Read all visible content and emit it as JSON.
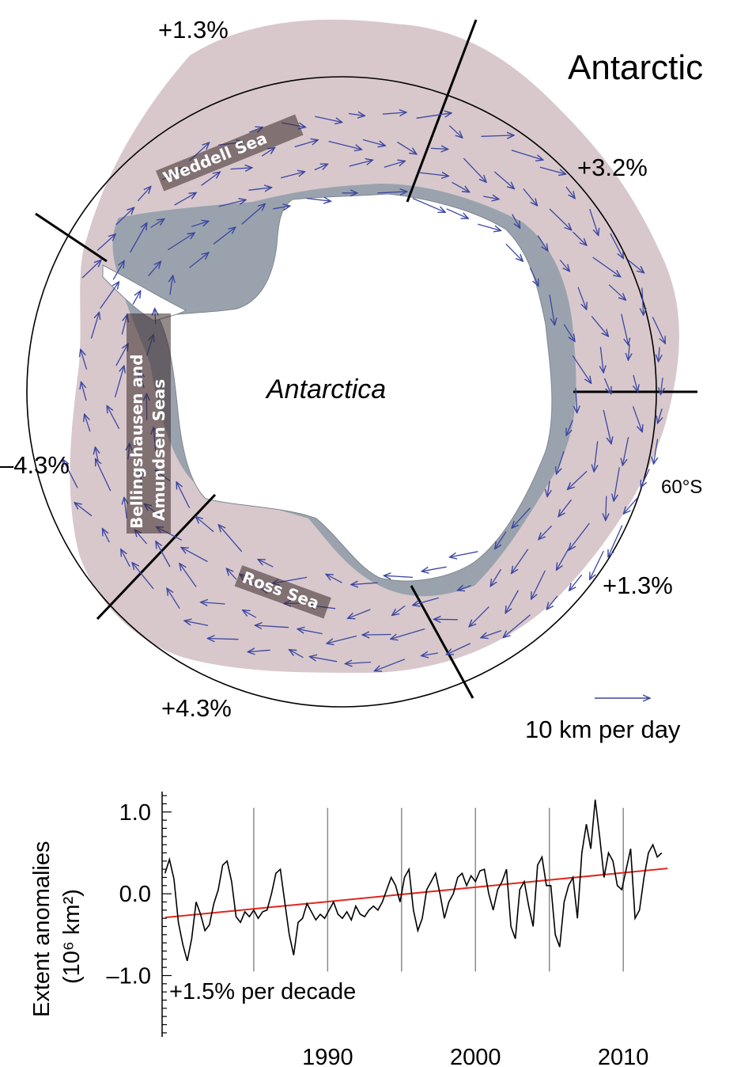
{
  "map": {
    "title": "Antarctic",
    "continent_label": "Antarctica",
    "latitude_label": "60°S",
    "seas": {
      "weddell": "Weddell Sea",
      "bellingshausen_line1": "Bellingshausen and",
      "bellingshausen_line2": "Amundsen Seas",
      "ross": "Ross Sea"
    },
    "sector_trends": {
      "weddell": "+1.3%",
      "indian": "+3.2%",
      "pacific_west": "+1.3%",
      "ross": "+4.3%",
      "bellingshausen": "–4.3%"
    },
    "scale_label": "10 km per day",
    "colors": {
      "sea_ice": "#d8c8cc",
      "ice_shelf": "#9aa3ad",
      "vector": "#3d47a0",
      "continent": "#ffffff"
    }
  },
  "chart_data": {
    "type": "line",
    "title": "",
    "xlabel": "",
    "ylabel": "Extent anomalies",
    "ylabel_units": "(10⁶ km²)",
    "xlim": [
      1978.8,
      2013.2
    ],
    "ylim": [
      -1.75,
      1.25
    ],
    "x_ticks": [
      "1990",
      "2000",
      "2010"
    ],
    "y_ticks": [
      "1.0",
      "0.0",
      "–1.0"
    ],
    "trend_label": "+1.5% per decade",
    "trend_color": "#e0281e",
    "trend": {
      "x": [
        1979,
        2013
      ],
      "y": [
        -0.29,
        0.31
      ]
    },
    "vertical_markers": [
      1985,
      1990,
      1995,
      2000,
      2005,
      2010
    ],
    "series": [
      {
        "x": [
          1979.0,
          1979.3,
          1979.6,
          1979.9,
          1980.2,
          1980.5,
          1980.8,
          1981.1,
          1981.4,
          1981.7,
          1982.0,
          1982.3,
          1982.6,
          1982.9,
          1983.2,
          1983.5,
          1983.8,
          1984.1,
          1984.4,
          1984.7,
          1985.0,
          1985.3,
          1985.6,
          1985.9,
          1986.2,
          1986.5,
          1986.8,
          1987.1,
          1987.4,
          1987.7,
          1988.0,
          1988.3,
          1988.6,
          1988.9,
          1989.2,
          1989.5,
          1989.8,
          1990.1,
          1990.4,
          1990.7,
          1991.0,
          1991.3,
          1991.6,
          1991.9,
          1992.2,
          1992.5,
          1992.8,
          1993.1,
          1993.4,
          1993.7,
          1994.0,
          1994.3,
          1994.6,
          1994.9,
          1995.2,
          1995.5,
          1995.8,
          1996.1,
          1996.4,
          1996.7,
          1997.0,
          1997.3,
          1997.6,
          1997.9,
          1998.2,
          1998.5,
          1998.8,
          1999.1,
          1999.4,
          1999.7,
          2000.0,
          2000.3,
          2000.6,
          2000.9,
          2001.2,
          2001.5,
          2001.8,
          2002.1,
          2002.4,
          2002.7,
          2003.0,
          2003.3,
          2003.6,
          2003.9,
          2004.2,
          2004.5,
          2004.8,
          2005.1,
          2005.4,
          2005.7,
          2006.0,
          2006.3,
          2006.6,
          2006.9,
          2007.2,
          2007.5,
          2007.8,
          2008.1,
          2008.4,
          2008.7,
          2009.0,
          2009.3,
          2009.6,
          2009.9,
          2010.2,
          2010.5,
          2010.8,
          2011.1,
          2011.4,
          2011.7,
          2012.0,
          2012.3,
          2012.6
        ],
        "values": [
          0.25,
          0.42,
          0.18,
          -0.35,
          -0.62,
          -0.82,
          -0.55,
          -0.1,
          -0.25,
          -0.45,
          -0.38,
          -0.12,
          0.05,
          0.35,
          0.4,
          0.15,
          -0.28,
          -0.35,
          -0.22,
          -0.28,
          -0.2,
          -0.3,
          -0.22,
          -0.2,
          0.0,
          0.25,
          0.3,
          -0.1,
          -0.5,
          -0.75,
          -0.35,
          -0.3,
          -0.12,
          -0.22,
          -0.32,
          -0.25,
          -0.3,
          -0.2,
          -0.1,
          -0.25,
          -0.3,
          -0.22,
          -0.32,
          -0.15,
          -0.25,
          -0.28,
          -0.2,
          -0.15,
          -0.2,
          -0.1,
          0.05,
          0.2,
          0.1,
          -0.1,
          0.2,
          0.3,
          -0.2,
          -0.45,
          -0.3,
          0.05,
          0.15,
          0.25,
          0.0,
          -0.3,
          -0.1,
          0.0,
          0.2,
          0.25,
          0.1,
          0.22,
          0.15,
          0.28,
          0.3,
          0.0,
          -0.2,
          0.05,
          0.15,
          0.3,
          -0.4,
          -0.55,
          0.05,
          0.15,
          -0.15,
          -0.4,
          0.35,
          0.45,
          0.1,
          0.1,
          -0.5,
          -0.65,
          -0.1,
          0.1,
          0.2,
          -0.3,
          0.5,
          0.85,
          0.55,
          1.15,
          0.7,
          0.2,
          0.5,
          0.4,
          0.1,
          0.05,
          0.3,
          0.55,
          -0.3,
          -0.2,
          0.2,
          0.5,
          0.6,
          0.45,
          0.5
        ]
      }
    ]
  }
}
